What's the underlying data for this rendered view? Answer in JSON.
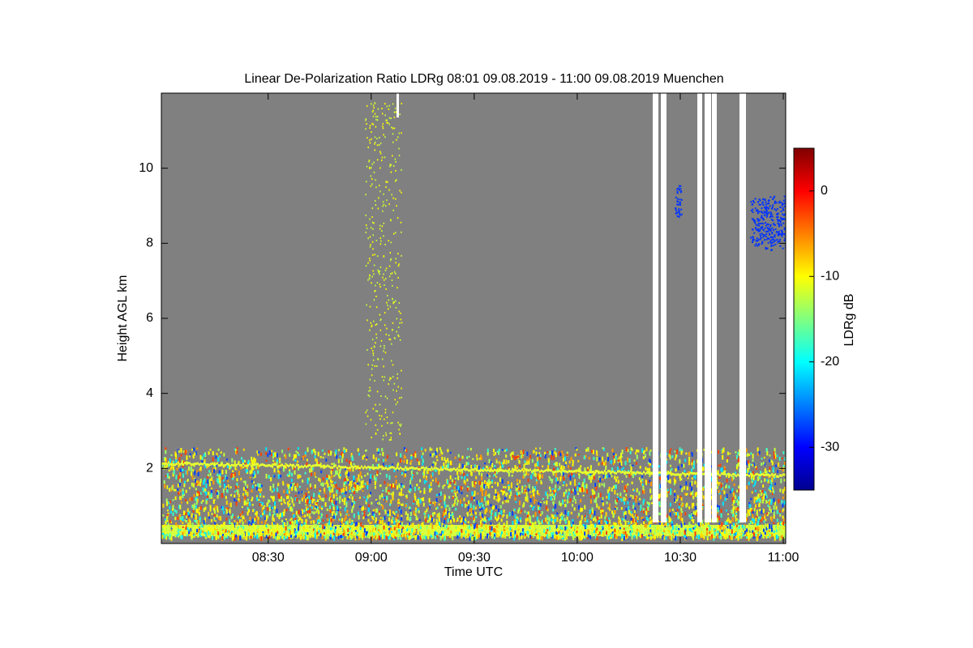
{
  "chart_data": {
    "type": "heatmap",
    "title": "Linear De-Polarization Ratio LDRg   08:01 09.08.2019 - 11:00 09.08.2019 Muenchen",
    "x_label": "Time UTC",
    "y_label": "Height AGL km",
    "colorbar_label": "LDRg dB",
    "xlim": [
      478.9,
      660.7
    ],
    "xticks": [
      {
        "value": 510,
        "label": "08:30"
      },
      {
        "value": 540,
        "label": "09:00"
      },
      {
        "value": 570,
        "label": "09:30"
      },
      {
        "value": 600,
        "label": "10:00"
      },
      {
        "value": 630,
        "label": "10:30"
      },
      {
        "value": 660,
        "label": "11:00"
      }
    ],
    "ylim": [
      0,
      12
    ],
    "yticks": [
      2,
      4,
      6,
      8,
      10
    ],
    "clim": [
      -35,
      5
    ],
    "cticks": [
      0,
      -10,
      -20,
      -30
    ]
  }
}
